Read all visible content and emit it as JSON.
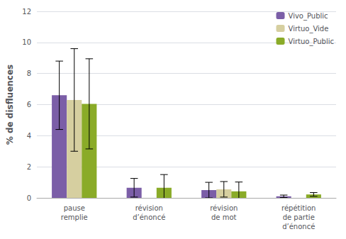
{
  "chart_data": {
    "type": "bar",
    "categories": [
      "pause\nremplie",
      "révision\nd’énoncé",
      "révision\nde mot",
      "répétition\nde partie\nd’énoncé"
    ],
    "series": [
      {
        "name": "Vivo_Public",
        "color": "#7b5ea7",
        "values": [
          6.6,
          0.65,
          0.5,
          0.1
        ],
        "errors": [
          2.2,
          0.6,
          0.5,
          0.08
        ]
      },
      {
        "name": "Virtuo_Vide",
        "color": "#d6cfa0",
        "values": [
          6.3,
          0.0,
          0.55,
          0.0
        ],
        "errors": [
          3.3,
          0.0,
          0.5,
          0.0
        ]
      },
      {
        "name": "Virtuo_Public",
        "color": "#8aab28",
        "values": [
          6.05,
          0.65,
          0.42,
          0.22
        ],
        "errors": [
          2.9,
          0.85,
          0.6,
          0.12
        ]
      }
    ],
    "ylabel": "% de disfluences",
    "ylim": [
      0,
      12
    ],
    "yticks": [
      0,
      2,
      4,
      6,
      8,
      10,
      12
    ],
    "grid": true,
    "legend": "upper right"
  }
}
